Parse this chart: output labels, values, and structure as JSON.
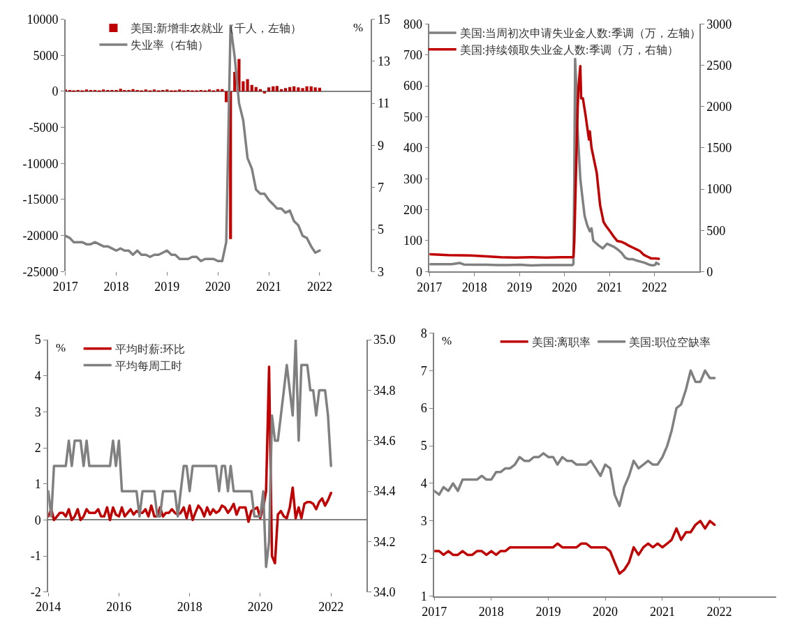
{
  "chart_data": [
    {
      "type": "bar",
      "legend": "top left",
      "y2label": "%",
      "ylim": [
        -25000,
        10000
      ],
      "yticks": [
        -25000,
        -20000,
        -15000,
        -10000,
        -5000,
        0,
        5000,
        10000
      ],
      "y2lim": [
        3,
        15
      ],
      "y2ticks": [
        3,
        5,
        7,
        9,
        11,
        13,
        15
      ],
      "xlim": [
        "2017-01-01",
        "2023-01-01"
      ],
      "xticks": [
        "2017",
        "2018",
        "2019",
        "2020",
        "2021",
        "2022"
      ],
      "x": [
        "2017-01",
        "2017-02",
        "2017-03",
        "2017-04",
        "2017-05",
        "2017-06",
        "2017-07",
        "2017-08",
        "2017-09",
        "2017-10",
        "2017-11",
        "2017-12",
        "2018-01",
        "2018-02",
        "2018-03",
        "2018-04",
        "2018-05",
        "2018-06",
        "2018-07",
        "2018-08",
        "2018-09",
        "2018-10",
        "2018-11",
        "2018-12",
        "2019-01",
        "2019-02",
        "2019-03",
        "2019-04",
        "2019-05",
        "2019-06",
        "2019-07",
        "2019-08",
        "2019-09",
        "2019-10",
        "2019-11",
        "2019-12",
        "2020-01",
        "2020-02",
        "2020-03",
        "2020-04",
        "2020-05",
        "2020-06",
        "2020-07",
        "2020-08",
        "2020-09",
        "2020-10",
        "2020-11",
        "2020-12",
        "2021-01",
        "2021-02",
        "2021-03",
        "2021-04",
        "2021-05",
        "2021-06",
        "2021-07",
        "2021-08",
        "2021-09",
        "2021-10",
        "2021-11",
        "2021-12",
        "2022-01"
      ],
      "series": [
        {
          "name": "美国:新增非农就业（千人，左轴）",
          "type": "bar",
          "color": "#c00000",
          "values": [
            250,
            200,
            100,
            200,
            150,
            250,
            200,
            200,
            50,
            250,
            200,
            200,
            200,
            350,
            200,
            200,
            300,
            200,
            150,
            250,
            100,
            250,
            150,
            200,
            250,
            50,
            150,
            250,
            100,
            200,
            150,
            150,
            200,
            150,
            250,
            150,
            300,
            300,
            -1500,
            -20500,
            2700,
            4500,
            1400,
            1700,
            900,
            600,
            300,
            -300,
            550,
            700,
            750,
            300,
            450,
            600,
            700,
            550,
            450,
            700,
            700,
            550,
            500
          ]
        },
        {
          "name": "失业率（右轴）",
          "type": "line",
          "axis": "y2",
          "color": "#808080",
          "values": [
            4.7,
            4.6,
            4.4,
            4.4,
            4.4,
            4.3,
            4.3,
            4.4,
            4.3,
            4.2,
            4.2,
            4.1,
            4.0,
            4.1,
            4.0,
            4.0,
            3.8,
            4.0,
            3.8,
            3.8,
            3.7,
            3.8,
            3.8,
            3.9,
            4.0,
            3.8,
            3.8,
            3.6,
            3.6,
            3.6,
            3.7,
            3.7,
            3.5,
            3.6,
            3.6,
            3.6,
            3.5,
            3.5,
            4.4,
            14.7,
            13.2,
            11.0,
            10.2,
            8.4,
            7.9,
            6.9,
            6.7,
            6.7,
            6.4,
            6.2,
            6.0,
            6.0,
            5.8,
            5.9,
            5.4,
            5.2,
            4.7,
            4.6,
            4.2,
            3.9,
            4.0
          ]
        }
      ]
    },
    {
      "type": "line",
      "legend": "top",
      "ylim": [
        0,
        800
      ],
      "yticks": [
        0,
        100,
        200,
        300,
        400,
        500,
        600,
        700,
        800
      ],
      "y2lim": [
        0,
        3000
      ],
      "y2ticks": [
        0,
        500,
        1000,
        1500,
        2000,
        2500,
        3000
      ],
      "xlim": [
        "2017-01-01",
        "2023-01-01"
      ],
      "xticks": [
        "2017",
        "2018",
        "2019",
        "2020",
        "2021",
        "2022"
      ],
      "series": [
        {
          "name": "美国:当周初次申请失业金人数:季调（万，左轴）",
          "color": "#808080",
          "x": [
            "2017-01-07",
            "2017-04-01",
            "2017-07-01",
            "2017-09-02",
            "2017-10-07",
            "2018-01-06",
            "2018-04-07",
            "2018-07-07",
            "2018-10-06",
            "2019-01-05",
            "2019-04-06",
            "2019-07-06",
            "2019-10-05",
            "2020-01-04",
            "2020-03-07",
            "2020-03-14",
            "2020-03-21",
            "2020-03-28",
            "2020-04-04",
            "2020-04-11",
            "2020-04-25",
            "2020-05-09",
            "2020-05-23",
            "2020-06-13",
            "2020-07-04",
            "2020-07-25",
            "2020-08-08",
            "2020-08-22",
            "2020-09-05",
            "2020-10-03",
            "2020-11-07",
            "2020-12-12",
            "2021-01-09",
            "2021-02-06",
            "2021-03-13",
            "2021-04-10",
            "2021-05-08",
            "2021-06-05",
            "2021-07-10",
            "2021-08-14",
            "2021-09-11",
            "2021-10-16",
            "2021-11-20",
            "2021-12-18",
            "2022-01-08",
            "2022-01-15",
            "2022-02-05"
          ],
          "values": [
            24,
            24,
            24,
            28,
            23,
            22,
            22,
            21,
            21,
            22,
            20,
            21,
            21,
            21,
            21,
            25,
            290,
            687,
            620,
            500,
            400,
            300,
            250,
            180,
            150,
            130,
            140,
            100,
            95,
            85,
            75,
            90,
            85,
            80,
            70,
            60,
            45,
            40,
            40,
            35,
            32,
            28,
            22,
            20,
            22,
            29,
            24
          ]
        },
        {
          "name": "美国:持续领取失业金人数:季调（万，右轴）",
          "color": "#c00000",
          "axis": "y2",
          "x": [
            "2017-01-07",
            "2017-06-03",
            "2017-12-02",
            "2018-04-07",
            "2018-08-04",
            "2018-12-01",
            "2019-04-06",
            "2019-08-03",
            "2019-12-07",
            "2020-03-07",
            "2020-03-14",
            "2020-03-21",
            "2020-04-04",
            "2020-04-18",
            "2020-04-25",
            "2020-05-09",
            "2020-05-16",
            "2020-05-30",
            "2020-06-20",
            "2020-07-18",
            "2020-07-25",
            "2020-08-08",
            "2020-09-05",
            "2020-09-19",
            "2020-10-17",
            "2020-11-14",
            "2020-12-05",
            "2021-01-09",
            "2021-02-06",
            "2021-03-06",
            "2021-04-10",
            "2021-05-08",
            "2021-06-12",
            "2021-07-10",
            "2021-08-07",
            "2021-09-04",
            "2021-10-09",
            "2021-11-06",
            "2021-12-04",
            "2022-01-08",
            "2022-02-05"
          ],
          "values": [
            210,
            200,
            195,
            185,
            175,
            170,
            175,
            170,
            175,
            175,
            180,
            350,
            1200,
            2000,
            2250,
            2490,
            2100,
            2100,
            1900,
            1600,
            1700,
            1500,
            1300,
            1200,
            800,
            600,
            550,
            480,
            420,
            370,
            360,
            340,
            310,
            290,
            270,
            250,
            200,
            180,
            160,
            160,
            155
          ]
        }
      ]
    },
    {
      "type": "line",
      "legend": "top left",
      "ylabel": "%",
      "ylim": [
        -2,
        5
      ],
      "yticks": [
        -2,
        -1,
        0,
        1,
        2,
        3,
        4,
        5
      ],
      "y2lim": [
        34.0,
        35.0
      ],
      "y2ticks": [
        {
          "value": 34.0,
          "label": "34.0"
        },
        34.2,
        34.4,
        34.6,
        34.8,
        {
          "value": 35.0,
          "label": "35.0"
        }
      ],
      "xlim": [
        "2014-01-01",
        "2023-01-01"
      ],
      "xticks": [
        "2014",
        "2016",
        "2018",
        "2020",
        "2022"
      ],
      "x": [
        "2014-01",
        "2014-02",
        "2014-03",
        "2014-04",
        "2014-05",
        "2014-06",
        "2014-07",
        "2014-08",
        "2014-09",
        "2014-10",
        "2014-11",
        "2014-12",
        "2015-01",
        "2015-02",
        "2015-03",
        "2015-04",
        "2015-05",
        "2015-06",
        "2015-07",
        "2015-08",
        "2015-09",
        "2015-10",
        "2015-11",
        "2015-12",
        "2016-01",
        "2016-02",
        "2016-03",
        "2016-04",
        "2016-05",
        "2016-06",
        "2016-07",
        "2016-08",
        "2016-09",
        "2016-10",
        "2016-11",
        "2016-12",
        "2017-01",
        "2017-02",
        "2017-03",
        "2017-04",
        "2017-05",
        "2017-06",
        "2017-07",
        "2017-08",
        "2017-09",
        "2017-10",
        "2017-11",
        "2017-12",
        "2018-01",
        "2018-02",
        "2018-03",
        "2018-04",
        "2018-05",
        "2018-06",
        "2018-07",
        "2018-08",
        "2018-09",
        "2018-10",
        "2018-11",
        "2018-12",
        "2019-01",
        "2019-02",
        "2019-03",
        "2019-04",
        "2019-05",
        "2019-06",
        "2019-07",
        "2019-08",
        "2019-09",
        "2019-10",
        "2019-11",
        "2019-12",
        "2020-01",
        "2020-02",
        "2020-03",
        "2020-04",
        "2020-05",
        "2020-06",
        "2020-07",
        "2020-08",
        "2020-09",
        "2020-10",
        "2020-11",
        "2020-12",
        "2021-01",
        "2021-02",
        "2021-03",
        "2021-04",
        "2021-05",
        "2021-06",
        "2021-07",
        "2021-08",
        "2021-09",
        "2021-10",
        "2021-11",
        "2021-12",
        "2022-01"
      ],
      "series": [
        {
          "name": "平均时薪:环比",
          "color": "#c00000",
          "values": [
            0.1,
            0.3,
            0.0,
            0.1,
            0.2,
            0.2,
            0.1,
            0.3,
            0.0,
            0.1,
            0.3,
            0.0,
            0.1,
            0.3,
            0.2,
            0.2,
            0.2,
            0.3,
            0.1,
            0.1,
            0.35,
            0.0,
            0.35,
            0.15,
            0.1,
            0.35,
            0.1,
            0.2,
            0.3,
            0.15,
            0.25,
            0.2,
            0.2,
            0.3,
            0.1,
            0.4,
            0.1,
            0.1,
            0.35,
            0.1,
            0.2,
            0.2,
            0.3,
            0.2,
            0.15,
            0.2,
            0.35,
            0.05,
            0.4,
            0.0,
            0.2,
            0.4,
            0.3,
            0.1,
            0.35,
            0.15,
            0.3,
            0.2,
            0.25,
            0.4,
            0.35,
            0.2,
            0.3,
            0.45,
            0.15,
            0.35,
            0.35,
            0.35,
            -0.05,
            0.25,
            0.3,
            0.35,
            0.05,
            0.35,
            0.8,
            4.25,
            -1.0,
            -1.2,
            0.15,
            0.25,
            0.1,
            0.05,
            0.35,
            0.9,
            0.05,
            0.35,
            0.05,
            0.45,
            0.5,
            0.5,
            0.45,
            0.3,
            0.5,
            0.6,
            0.4,
            0.55,
            0.75
          ]
        },
        {
          "name": "平均每周工时",
          "color": "#808080",
          "axis": "y2",
          "values": [
            34.4,
            34.3,
            34.5,
            34.5,
            34.5,
            34.5,
            34.5,
            34.6,
            34.5,
            34.6,
            34.6,
            34.6,
            34.5,
            34.6,
            34.5,
            34.5,
            34.5,
            34.5,
            34.5,
            34.5,
            34.5,
            34.5,
            34.6,
            34.5,
            34.6,
            34.4,
            34.4,
            34.4,
            34.4,
            34.4,
            34.4,
            34.3,
            34.4,
            34.4,
            34.4,
            34.4,
            34.4,
            34.3,
            34.3,
            34.4,
            34.4,
            34.4,
            34.4,
            34.4,
            34.3,
            34.4,
            34.5,
            34.5,
            34.4,
            34.5,
            34.5,
            34.5,
            34.5,
            34.5,
            34.5,
            34.5,
            34.5,
            34.5,
            34.4,
            34.5,
            34.5,
            34.4,
            34.5,
            34.4,
            34.4,
            34.4,
            34.4,
            34.4,
            34.4,
            34.4,
            34.3,
            34.3,
            34.3,
            34.4,
            34.1,
            34.2,
            34.7,
            34.6,
            34.6,
            34.7,
            34.8,
            34.9,
            34.8,
            34.7,
            35.0,
            34.6,
            34.9,
            34.9,
            34.9,
            34.8,
            34.8,
            34.7,
            34.8,
            34.8,
            34.8,
            34.7,
            34.5
          ]
        }
      ]
    },
    {
      "type": "line",
      "legend": "top",
      "ylabel": "%",
      "ylim": [
        1,
        8
      ],
      "yticks": [
        1,
        2,
        3,
        4,
        5,
        6,
        7,
        8
      ],
      "xlim": [
        "2017-01-01",
        "2023-01-01"
      ],
      "xticks": [
        "2017",
        "2018",
        "2019",
        "2020",
        "2021",
        "2022"
      ],
      "x": [
        "2017-01",
        "2017-02",
        "2017-03",
        "2017-04",
        "2017-05",
        "2017-06",
        "2017-07",
        "2017-08",
        "2017-09",
        "2017-10",
        "2017-11",
        "2017-12",
        "2018-01",
        "2018-02",
        "2018-03",
        "2018-04",
        "2018-05",
        "2018-06",
        "2018-07",
        "2018-08",
        "2018-09",
        "2018-10",
        "2018-11",
        "2018-12",
        "2019-01",
        "2019-02",
        "2019-03",
        "2019-04",
        "2019-05",
        "2019-06",
        "2019-07",
        "2019-08",
        "2019-09",
        "2019-10",
        "2019-11",
        "2019-12",
        "2020-01",
        "2020-02",
        "2020-03",
        "2020-04",
        "2020-05",
        "2020-06",
        "2020-07",
        "2020-08",
        "2020-09",
        "2020-10",
        "2020-11",
        "2020-12",
        "2021-01",
        "2021-02",
        "2021-03",
        "2021-04",
        "2021-05",
        "2021-06",
        "2021-07",
        "2021-08",
        "2021-09",
        "2021-10",
        "2021-11",
        "2021-12"
      ],
      "series": [
        {
          "name": "美国:离职率",
          "color": "#c00000",
          "values": [
            2.2,
            2.2,
            2.1,
            2.2,
            2.1,
            2.1,
            2.2,
            2.1,
            2.1,
            2.2,
            2.2,
            2.1,
            2.2,
            2.1,
            2.2,
            2.2,
            2.3,
            2.3,
            2.3,
            2.3,
            2.3,
            2.3,
            2.3,
            2.3,
            2.3,
            2.3,
            2.4,
            2.3,
            2.3,
            2.3,
            2.3,
            2.4,
            2.4,
            2.3,
            2.3,
            2.3,
            2.3,
            2.2,
            1.9,
            1.6,
            1.7,
            1.9,
            2.3,
            2.1,
            2.3,
            2.4,
            2.3,
            2.4,
            2.3,
            2.4,
            2.5,
            2.8,
            2.5,
            2.7,
            2.7,
            2.9,
            3.0,
            2.8,
            3.0,
            2.9
          ]
        },
        {
          "name": "美国:职位空缺率",
          "color": "#808080",
          "values": [
            3.8,
            3.7,
            3.9,
            3.8,
            4.0,
            3.8,
            4.1,
            4.1,
            4.1,
            4.1,
            4.2,
            4.1,
            4.1,
            4.3,
            4.3,
            4.4,
            4.4,
            4.5,
            4.7,
            4.6,
            4.6,
            4.7,
            4.7,
            4.8,
            4.7,
            4.7,
            4.5,
            4.7,
            4.6,
            4.6,
            4.5,
            4.5,
            4.5,
            4.6,
            4.4,
            4.2,
            4.5,
            4.4,
            3.7,
            3.4,
            3.9,
            4.2,
            4.6,
            4.4,
            4.5,
            4.6,
            4.5,
            4.5,
            4.7,
            5.0,
            5.4,
            6.0,
            6.1,
            6.5,
            7.0,
            6.7,
            6.7,
            7.0,
            6.8,
            6.8
          ]
        }
      ]
    }
  ]
}
